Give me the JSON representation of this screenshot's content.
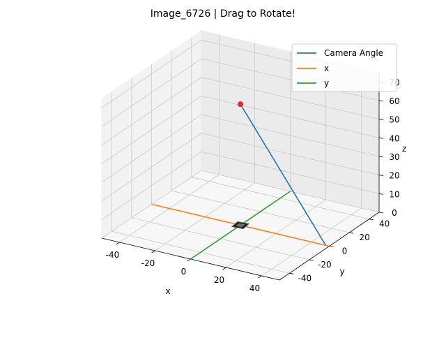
{
  "window": {
    "title": "Image_6726 | Drag to Rotate!"
  },
  "chart_data": {
    "type": "line",
    "projection": "3d",
    "title": "Image_6726 | Drag to Rotate!",
    "xlabel": "x",
    "ylabel": "y",
    "zlabel": "z",
    "xlim": [
      -50,
      50
    ],
    "ylim": [
      -50,
      50
    ],
    "zlim": [
      0,
      75
    ],
    "x_ticks": [
      "-40",
      "-20",
      "0",
      "20",
      "40"
    ],
    "y_ticks": [
      "-40",
      "-20",
      "0",
      "20",
      "40"
    ],
    "z_ticks": [
      "0",
      "10",
      "20",
      "30",
      "40",
      "50",
      "60",
      "70"
    ],
    "grid": true,
    "legend": {
      "placement": "top-right",
      "entries": [
        {
          "label": "Camera Angle",
          "color": "#1f77b4"
        },
        {
          "label": "x",
          "color": "#ff7f0e"
        },
        {
          "label": "y",
          "color": "#2ca02c"
        }
      ]
    },
    "series": [
      {
        "name": "Camera Angle",
        "color": "#1f77b4",
        "points": [
          [
            48,
            0,
            0
          ],
          [
            0,
            0,
            65
          ]
        ]
      },
      {
        "name": "x",
        "color": "#ff7f0e",
        "points": [
          [
            -50,
            0,
            0
          ],
          [
            50,
            0,
            0
          ]
        ]
      },
      {
        "name": "y",
        "color": "#2ca02c",
        "points": [
          [
            0,
            -50,
            0
          ],
          [
            0,
            50,
            0
          ]
        ]
      }
    ],
    "camera_marker": {
      "point": [
        0,
        0,
        65
      ],
      "color": "#e8252a"
    },
    "image_plane_marker": {
      "point": [
        0,
        0,
        0
      ],
      "color": "#1a1a1a"
    }
  }
}
